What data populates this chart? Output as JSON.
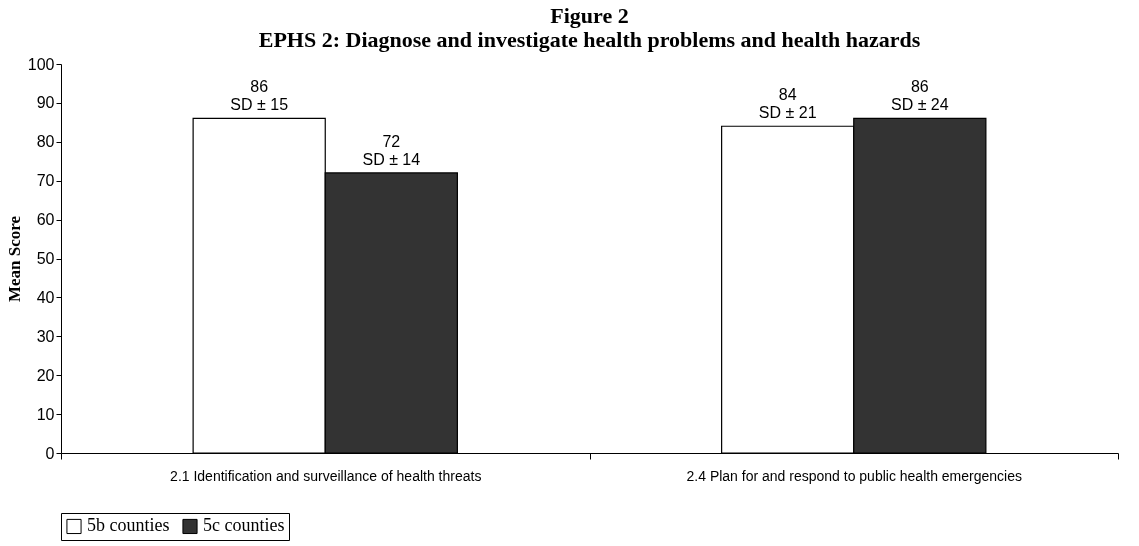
{
  "chart_data": {
    "type": "bar",
    "title": "Figure 2",
    "subtitle": "EPHS 2: Diagnose and investigate health problems and health hazards",
    "ylabel": "Mean Score",
    "categories": [
      "2.1 Identification and surveillance of health threats",
      "2.4 Plan for and respond to public health emergencies"
    ],
    "series": [
      {
        "name": "5b counties",
        "color": "#ffffff",
        "values": [
          86,
          84
        ],
        "value_labels": [
          "86\nSD ± 15",
          "84\nSD ± 21"
        ]
      },
      {
        "name": "5c counties",
        "color": "#333333",
        "values": [
          72,
          86
        ],
        "value_labels": [
          "72\nSD ± 14",
          "86\nSD ± 24"
        ]
      }
    ],
    "ylim": [
      0,
      100
    ],
    "yticks": [
      0,
      10,
      20,
      30,
      40,
      50,
      60,
      70,
      80,
      90,
      100
    ],
    "grid": false,
    "legend": "bottom"
  }
}
